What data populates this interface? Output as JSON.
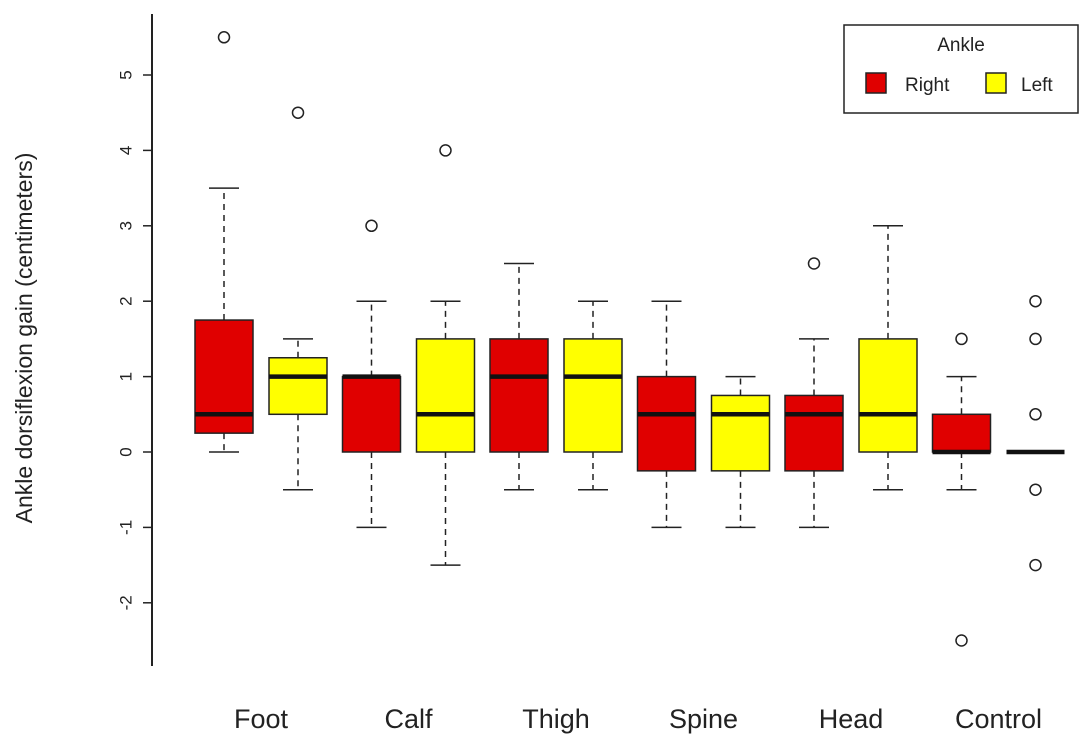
{
  "chart_data": {
    "type": "boxplot",
    "ylabel": "Ankle dorsiflexion gain (centimeters)",
    "ylim": [
      -2.5,
      5.5
    ],
    "yticks": [
      -2,
      -1,
      0,
      1,
      2,
      3,
      4,
      5
    ],
    "categories": [
      "Foot",
      "Calf",
      "Thigh",
      "Spine",
      "Head",
      "Control"
    ],
    "legend": {
      "title": "Ankle",
      "position": "top-right",
      "items": [
        {
          "label": "Right",
          "color": "#e00000"
        },
        {
          "label": "Left",
          "color": "#ffff00"
        }
      ]
    },
    "series": [
      {
        "name": "Right",
        "color": "#e00000",
        "boxes": [
          {
            "whisker_low": 0,
            "q1": 0.25,
            "median": 0.5,
            "q3": 1.75,
            "whisker_high": 3.5,
            "outliers": [
              5.5
            ]
          },
          {
            "whisker_low": -1,
            "q1": 0,
            "median": 1,
            "q3": 1,
            "whisker_high": 2,
            "outliers": [
              3
            ]
          },
          {
            "whisker_low": -0.5,
            "q1": 0,
            "median": 1,
            "q3": 1.5,
            "whisker_high": 2.5,
            "outliers": []
          },
          {
            "whisker_low": -1,
            "q1": -0.25,
            "median": 0.5,
            "q3": 1,
            "whisker_high": 2,
            "outliers": []
          },
          {
            "whisker_low": -1,
            "q1": -0.25,
            "median": 0.5,
            "q3": 0.75,
            "whisker_high": 1.5,
            "outliers": [
              2.5
            ]
          },
          {
            "whisker_low": -0.5,
            "q1": 0,
            "median": 0,
            "q3": 0.5,
            "whisker_high": 1,
            "outliers": [
              1.5,
              -2.5
            ]
          }
        ]
      },
      {
        "name": "Left",
        "color": "#ffff00",
        "boxes": [
          {
            "whisker_low": -0.5,
            "q1": 0.5,
            "median": 1,
            "q3": 1.25,
            "whisker_high": 1.5,
            "outliers": [
              4.5
            ]
          },
          {
            "whisker_low": -1.5,
            "q1": 0,
            "median": 0.5,
            "q3": 1.5,
            "whisker_high": 2,
            "outliers": [
              4
            ]
          },
          {
            "whisker_low": -0.5,
            "q1": 0,
            "median": 1,
            "q3": 1.5,
            "whisker_high": 2,
            "outliers": []
          },
          {
            "whisker_low": -1,
            "q1": -0.25,
            "median": 0.5,
            "q3": 0.75,
            "whisker_high": 1,
            "outliers": []
          },
          {
            "whisker_low": -0.5,
            "q1": 0,
            "median": 0.5,
            "q3": 1.5,
            "whisker_high": 3,
            "outliers": []
          },
          {
            "whisker_low": 0,
            "q1": 0,
            "median": 0,
            "q3": 0,
            "whisker_high": 0,
            "outliers": [
              2,
              1.5,
              0.5,
              -0.5,
              -1.5
            ]
          }
        ]
      }
    ]
  }
}
